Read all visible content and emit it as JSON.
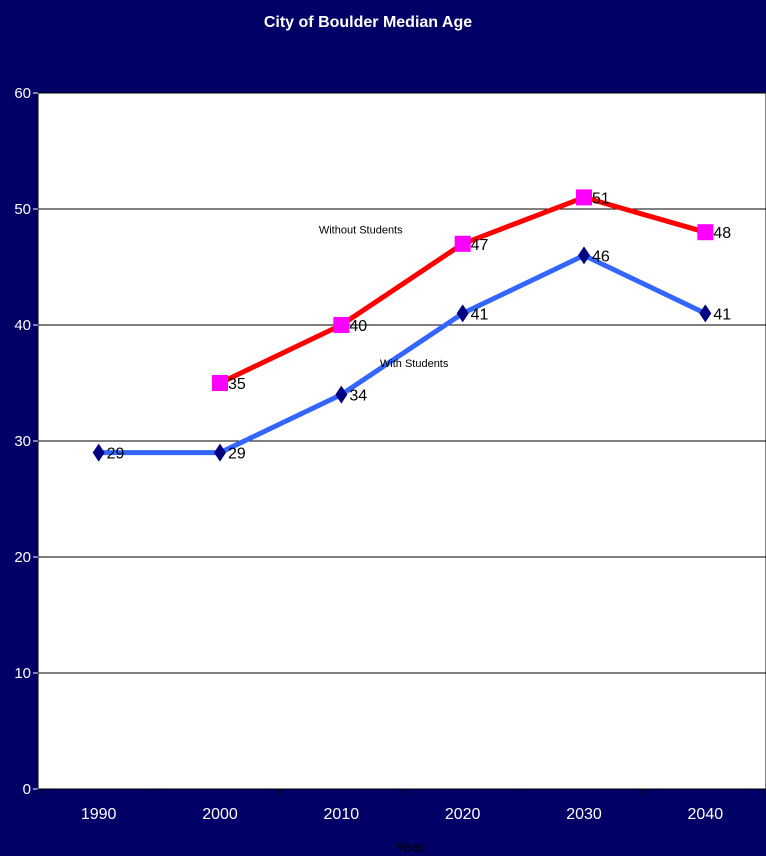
{
  "chart_data": {
    "type": "line",
    "title": "City of Boulder Median Age",
    "xlabel": "Year",
    "ylabel": "",
    "categories": [
      "1990",
      "2000",
      "2010",
      "2020",
      "2030",
      "2040"
    ],
    "ylim": [
      0,
      60
    ],
    "yticks": [
      0,
      10,
      20,
      30,
      40,
      50,
      60
    ],
    "grid": true,
    "series": [
      {
        "name": "Without Students",
        "values": [
          null,
          35,
          40,
          47,
          51,
          48
        ],
        "line_color": "#ff0000",
        "marker_color": "#ff00ff",
        "marker": "square"
      },
      {
        "name": "With Students",
        "values": [
          29,
          29,
          34,
          41,
          46,
          41
        ],
        "line_color": "#3366ff",
        "marker_color": "#000080",
        "marker": "diamond"
      }
    ]
  },
  "colors": {
    "background": "#000066",
    "plot_area": "#ffffff",
    "text_light": "#ffffff",
    "text_dark": "#000000"
  }
}
